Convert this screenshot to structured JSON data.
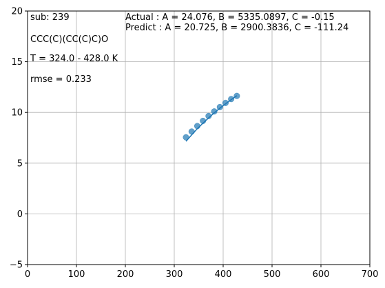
{
  "chart_data": {
    "type": "scatter",
    "xlim": [
      0,
      700
    ],
    "ylim": [
      -5,
      20
    ],
    "x_ticks": [
      0,
      100,
      200,
      300,
      400,
      500,
      600,
      700
    ],
    "y_ticks": [
      -5,
      0,
      5,
      10,
      15,
      20
    ],
    "grid": true,
    "annotations": {
      "sub": " sub: 239",
      "smiles": "CCC(C)(CC(C)C)O",
      "trange": "T = 324.0 - 428.0 K",
      "rmse": "rmse = 0.233",
      "actual": "Actual  : A = 24.076, B = 5335.0897,  C = -0.15",
      "predict": "Predict : A = 20.725, B = 2900.3836,  C = -111.24"
    },
    "series": [
      {
        "kind": "points",
        "color": "#1f77b4",
        "x": [
          324,
          335.6,
          347.1,
          358.7,
          370.2,
          381.8,
          393.3,
          404.9,
          416.4,
          428
        ],
        "y": [
          7.55,
          8.12,
          8.66,
          9.17,
          9.65,
          10.1,
          10.53,
          10.94,
          11.32,
          11.63
        ]
      },
      {
        "kind": "line",
        "color": "#1f77b4",
        "x": [
          324,
          335.6,
          347.1,
          358.7,
          370.2,
          381.8,
          393.3,
          404.9,
          416.4,
          428
        ],
        "y": [
          7.15,
          7.79,
          8.39,
          8.94,
          9.46,
          9.96,
          10.42,
          10.85,
          11.26,
          11.65
        ]
      }
    ]
  }
}
